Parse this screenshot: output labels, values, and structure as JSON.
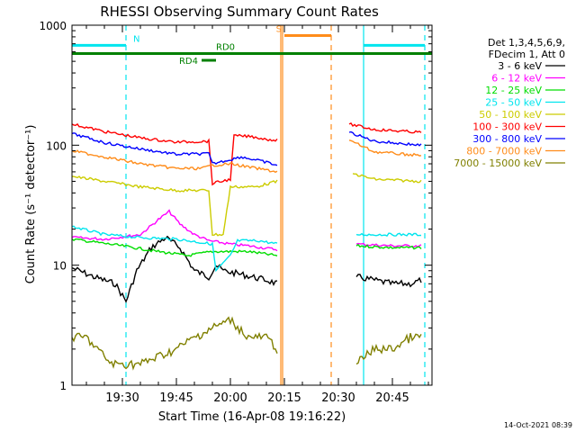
{
  "chart_data": {
    "type": "line",
    "title": "RHESSI Observing Summary Count Rates",
    "xlabel": "Start Time (16-Apr-08 19:16:22)",
    "ylabel": "Count Rate (s⁻¹ detector⁻¹)",
    "yscale": "log",
    "ylim": [
      1,
      1000
    ],
    "xlim": [
      "19:16",
      "20:56"
    ],
    "x_tick_labels": [
      "19:30",
      "19:45",
      "20:00",
      "20:15",
      "20:30",
      "20:45"
    ],
    "y_tick_labels": [
      "1",
      "10",
      "100",
      "1000"
    ],
    "legend_header": [
      "Det 1,3,4,5,6,9,",
      "FDecim 1, Att 0"
    ],
    "legend_position": "right",
    "footer": "14-Oct-2021 08:39",
    "series": [
      {
        "name": "3 - 6 keV",
        "color": "#000000",
        "points": [
          [
            "19:16",
            9.5
          ],
          [
            "19:22",
            8
          ],
          [
            "19:28",
            7
          ],
          [
            "19:31",
            5
          ],
          [
            "19:34",
            9
          ],
          [
            "19:38",
            14
          ],
          [
            "19:42",
            17
          ],
          [
            "19:46",
            14
          ],
          [
            "19:50",
            9
          ],
          [
            "19:54",
            8
          ],
          [
            "19:56",
            10
          ],
          [
            "19:58",
            9
          ],
          [
            "20:02",
            8.5
          ],
          [
            "20:06",
            8
          ],
          [
            "20:10",
            7.5
          ],
          [
            "20:13",
            7
          ]
        ]
      },
      {
        "name": "3 - 6 keV",
        "color": "#000000",
        "points": [
          [
            "20:35",
            8
          ],
          [
            "20:40",
            7.5
          ],
          [
            "20:45",
            7
          ],
          [
            "20:50",
            7
          ],
          [
            "20:53",
            7.5
          ]
        ]
      },
      {
        "name": "6 - 12 keV",
        "color": "#ff00ff",
        "points": [
          [
            "19:16",
            17
          ],
          [
            "19:25",
            16.5
          ],
          [
            "19:35",
            18
          ],
          [
            "19:40",
            24
          ],
          [
            "19:43",
            28
          ],
          [
            "19:46",
            22
          ],
          [
            "19:50",
            18
          ],
          [
            "19:54",
            16
          ],
          [
            "20:00",
            15
          ],
          [
            "20:05",
            14.5
          ],
          [
            "20:13",
            13.5
          ]
        ]
      },
      {
        "name": "6 - 12 keV",
        "color": "#ff00ff",
        "points": [
          [
            "20:35",
            15
          ],
          [
            "20:45",
            14.5
          ],
          [
            "20:53",
            14.5
          ]
        ]
      },
      {
        "name": "12 - 25 keV",
        "color": "#00dd00",
        "points": [
          [
            "19:16",
            16.5
          ],
          [
            "19:30",
            14.5
          ],
          [
            "19:40",
            13
          ],
          [
            "19:48",
            12
          ],
          [
            "19:55",
            13
          ],
          [
            "20:05",
            13
          ],
          [
            "20:13",
            12
          ]
        ]
      },
      {
        "name": "12 - 25 keV",
        "color": "#00dd00",
        "points": [
          [
            "20:35",
            14.5
          ],
          [
            "20:45",
            14
          ],
          [
            "20:53",
            14
          ]
        ]
      },
      {
        "name": "25 - 50 keV",
        "color": "#00e5ee",
        "points": [
          [
            "19:16",
            21
          ],
          [
            "19:25",
            18
          ],
          [
            "19:35",
            17
          ],
          [
            "19:45",
            16.5
          ],
          [
            "19:55",
            15
          ],
          [
            "19:56",
            9
          ],
          [
            "20:00",
            12
          ],
          [
            "20:02",
            16
          ],
          [
            "20:08",
            16
          ],
          [
            "20:13",
            15
          ]
        ]
      },
      {
        "name": "25 - 50 keV",
        "color": "#00e5ee",
        "points": [
          [
            "20:35",
            18
          ],
          [
            "20:45",
            18
          ],
          [
            "20:53",
            18
          ]
        ]
      },
      {
        "name": "50 - 100 keV",
        "color": "#cccc00",
        "points": [
          [
            "19:16",
            55
          ],
          [
            "19:25",
            50
          ],
          [
            "19:35",
            45
          ],
          [
            "19:45",
            42
          ],
          [
            "19:52",
            42
          ],
          [
            "19:54",
            42
          ],
          [
            "19:55",
            18
          ],
          [
            "19:58",
            18
          ],
          [
            "20:00",
            45
          ],
          [
            "20:07",
            45
          ],
          [
            "20:13",
            50
          ]
        ]
      },
      {
        "name": "50 - 100 keV",
        "color": "#cccc00",
        "points": [
          [
            "20:34",
            58
          ],
          [
            "20:40",
            52
          ],
          [
            "20:53",
            50
          ]
        ]
      },
      {
        "name": "100 - 300 keV",
        "color": "#ff0000",
        "points": [
          [
            "19:16",
            150
          ],
          [
            "19:25",
            130
          ],
          [
            "19:35",
            115
          ],
          [
            "19:45",
            106
          ],
          [
            "19:54",
            108
          ],
          [
            "19:55",
            48
          ],
          [
            "20:00",
            52
          ],
          [
            "20:01",
            120
          ],
          [
            "20:06",
            118
          ],
          [
            "20:10",
            112
          ],
          [
            "20:13",
            110
          ]
        ]
      },
      {
        "name": "100 - 300 keV",
        "color": "#ff0000",
        "points": [
          [
            "20:33",
            150
          ],
          [
            "20:40",
            135
          ],
          [
            "20:53",
            128
          ]
        ]
      },
      {
        "name": "300 - 800 keV",
        "color": "#0000ff",
        "points": [
          [
            "19:16",
            125
          ],
          [
            "19:25",
            105
          ],
          [
            "19:35",
            93
          ],
          [
            "19:45",
            84
          ],
          [
            "19:54",
            85
          ],
          [
            "19:55",
            70
          ],
          [
            "20:00",
            76
          ],
          [
            "20:03",
            80
          ],
          [
            "20:10",
            72
          ],
          [
            "20:13",
            68
          ]
        ]
      },
      {
        "name": "300 - 800 keV",
        "color": "#0000ff",
        "points": [
          [
            "20:33",
            128
          ],
          [
            "20:40",
            108
          ],
          [
            "20:53",
            100
          ]
        ]
      },
      {
        "name": "800 - 7000 keV",
        "color": "#ff8c1a",
        "points": [
          [
            "19:16",
            90
          ],
          [
            "19:25",
            80
          ],
          [
            "19:35",
            70
          ],
          [
            "19:45",
            64
          ],
          [
            "19:52",
            64
          ],
          [
            "19:55",
            68
          ],
          [
            "20:00",
            70
          ],
          [
            "20:06",
            65
          ],
          [
            "20:13",
            60
          ]
        ]
      },
      {
        "name": "800 - 7000 keV",
        "color": "#ff8c1a",
        "points": [
          [
            "20:33",
            110
          ],
          [
            "20:40",
            88
          ],
          [
            "20:53",
            82
          ]
        ]
      },
      {
        "name": "7000 - 15000 keV",
        "color": "#808000",
        "points": [
          [
            "19:16",
            2.5
          ],
          [
            "19:20",
            2.5
          ],
          [
            "19:23",
            2
          ],
          [
            "19:27",
            1.5
          ],
          [
            "19:35",
            1.5
          ],
          [
            "19:45",
            2
          ],
          [
            "19:50",
            2.5
          ],
          [
            "19:55",
            3
          ],
          [
            "20:00",
            3.5
          ],
          [
            "20:05",
            2.5
          ],
          [
            "20:10",
            2.5
          ],
          [
            "20:13",
            2
          ]
        ]
      },
      {
        "name": "7000 - 15000 keV",
        "color": "#808000",
        "points": [
          [
            "20:35",
            1.5
          ],
          [
            "20:40",
            2
          ],
          [
            "20:45",
            2
          ],
          [
            "20:50",
            2.5
          ],
          [
            "20:53",
            2.5
          ]
        ]
      }
    ],
    "vertical_markers": [
      {
        "time": "19:31",
        "color": "#00e5ee",
        "style": "dashed"
      },
      {
        "time": "20:14",
        "color": "#ff8c1a",
        "style": "solid"
      },
      {
        "time": "20:14.5",
        "color": "#ff8c1a",
        "style": "solid"
      },
      {
        "time": "20:28",
        "color": "#ff8c1a",
        "style": "dashed"
      },
      {
        "time": "20:37",
        "color": "#00e5ee",
        "style": "solid"
      },
      {
        "time": "20:54",
        "color": "#00e5ee",
        "style": "dashed"
      }
    ],
    "state_bars": [
      {
        "label": "N",
        "color": "#00e5ee",
        "from": "19:16",
        "to": "19:31",
        "level": 680
      },
      {
        "label": "",
        "color": "#00e5ee",
        "from": "20:37",
        "to": "20:54",
        "level": 680
      },
      {
        "label": "S",
        "color": "#ff8c1a",
        "from": "20:15",
        "to": "20:28",
        "level": 820
      },
      {
        "label": "RD0",
        "color": "#008000",
        "from": "19:16",
        "to": "20:56",
        "level": 580
      },
      {
        "label": "RD4",
        "color": "#008000",
        "from": "19:52",
        "to": "19:56",
        "level": 510
      }
    ]
  }
}
